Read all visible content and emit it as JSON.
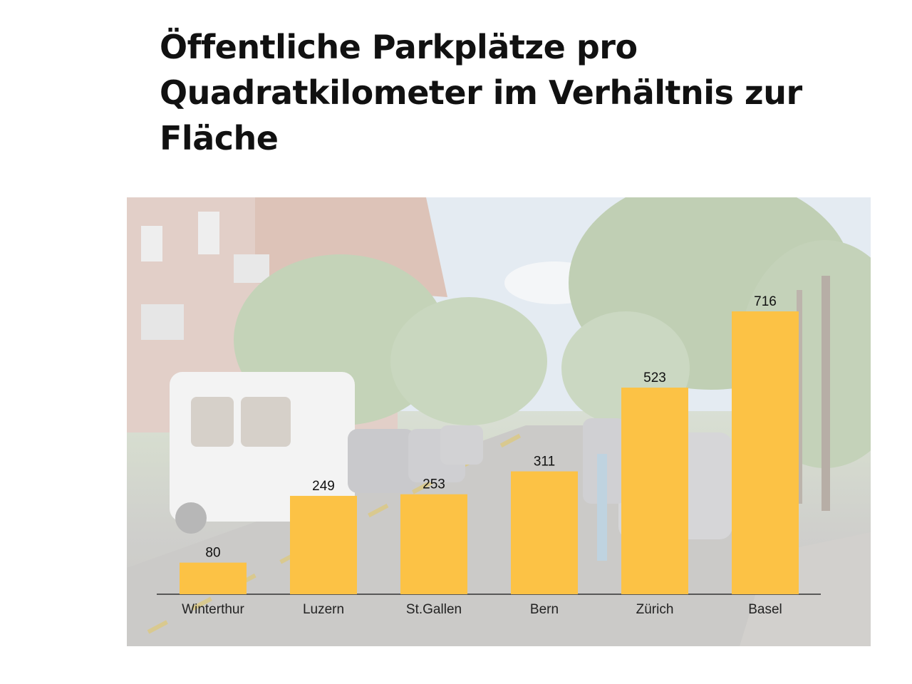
{
  "title": "Öffentliche Parkplätze pro Quadratkilometer im Verhältnis zur Fläche",
  "colors": {
    "bar": "#fcc245",
    "axis": "#333333"
  },
  "background_image": "street-scene-with-parked-cars-and-trees",
  "chart_data": {
    "type": "bar",
    "title": "Öffentliche Parkplätze pro Quadratkilometer im Verhältnis zur Fläche",
    "categories": [
      "Winterthur",
      "Luzern",
      "St.Gallen",
      "Bern",
      "Zürich",
      "Basel"
    ],
    "values": [
      80,
      249,
      253,
      311,
      523,
      716
    ],
    "xlabel": "",
    "ylabel": "",
    "ylim": [
      0,
      760
    ],
    "grid": false,
    "legend": "none",
    "data_labels": true
  }
}
